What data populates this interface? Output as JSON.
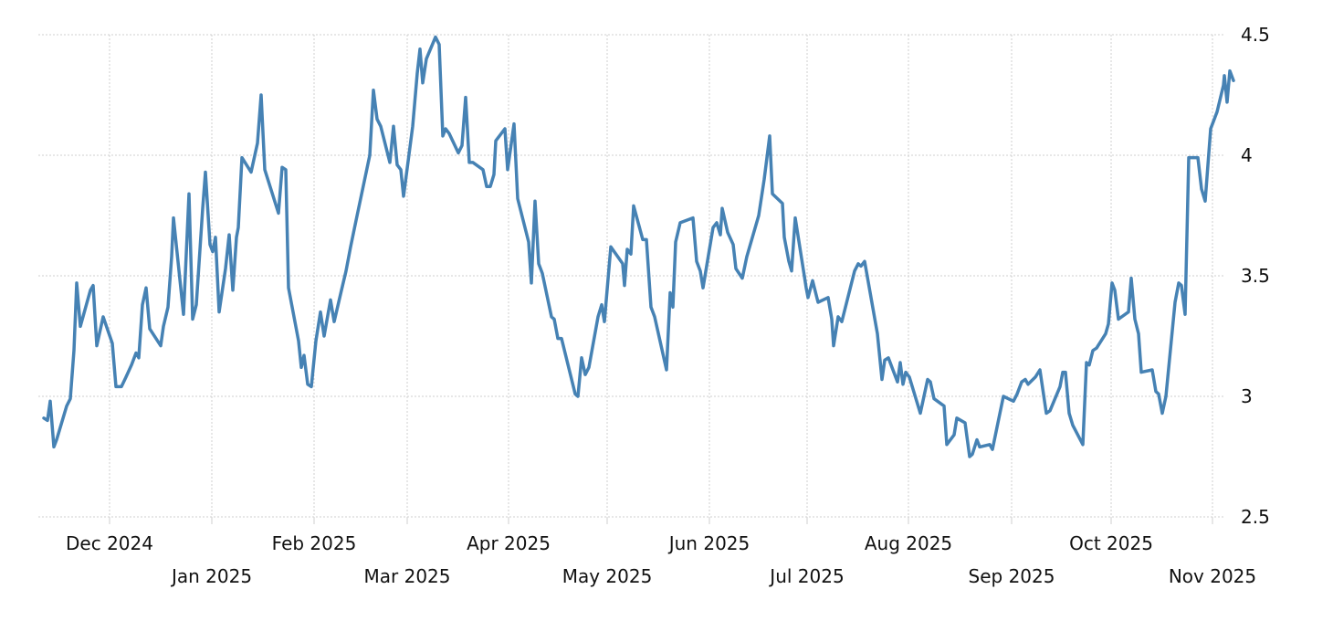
{
  "chart_data": {
    "type": "line",
    "title": "",
    "xlabel": "",
    "ylabel": "",
    "ylim": [
      2.5,
      4.5
    ],
    "y_ticks": [
      "4.5",
      "4",
      "3.5",
      "3",
      "2.5"
    ],
    "y_axis_position": "right",
    "grid": true,
    "legend": null,
    "line_color": "#4682b4",
    "x_tick_labels": [
      {
        "label": "Dec 2024",
        "row": 1
      },
      {
        "label": "Jan 2025",
        "row": 2
      },
      {
        "label": "Feb 2025",
        "row": 1
      },
      {
        "label": "Mar 2025",
        "row": 2
      },
      {
        "label": "Apr 2025",
        "row": 1
      },
      {
        "label": "May 2025",
        "row": 2
      },
      {
        "label": "Jun 2025",
        "row": 1
      },
      {
        "label": "Jul 2025",
        "row": 2
      },
      {
        "label": "Aug 2025",
        "row": 1
      },
      {
        "label": "Sep 2025",
        "row": 2
      },
      {
        "label": "Oct 2025",
        "row": 1
      },
      {
        "label": "Nov 2025",
        "row": 2
      }
    ],
    "series": [
      {
        "name": "value",
        "points": [
          [
            48,
            2.91
          ],
          [
            52,
            2.9
          ],
          [
            55,
            2.98
          ],
          [
            59,
            2.79
          ],
          [
            62,
            2.82
          ],
          [
            73,
            2.96
          ],
          [
            77,
            2.99
          ],
          [
            81,
            3.19
          ],
          [
            84,
            3.47
          ],
          [
            88,
            3.29
          ],
          [
            99,
            3.44
          ],
          [
            102,
            3.46
          ],
          [
            106,
            3.21
          ],
          [
            113,
            3.33
          ],
          [
            123,
            3.22
          ],
          [
            127,
            3.04
          ],
          [
            133,
            3.04
          ],
          [
            138,
            3.08
          ],
          [
            144,
            3.13
          ],
          [
            149,
            3.18
          ],
          [
            152,
            3.16
          ],
          [
            156,
            3.38
          ],
          [
            160,
            3.45
          ],
          [
            164,
            3.28
          ],
          [
            176,
            3.21
          ],
          [
            179,
            3.29
          ],
          [
            184,
            3.37
          ],
          [
            188,
            3.58
          ],
          [
            190,
            3.74
          ],
          [
            201,
            3.34
          ],
          [
            207,
            3.84
          ],
          [
            211,
            3.32
          ],
          [
            215,
            3.38
          ],
          [
            222,
            3.78
          ],
          [
            225,
            3.93
          ],
          [
            230,
            3.63
          ],
          [
            233,
            3.6
          ],
          [
            236,
            3.66
          ],
          [
            240,
            3.35
          ],
          [
            247,
            3.53
          ],
          [
            251,
            3.67
          ],
          [
            255,
            3.44
          ],
          [
            259,
            3.66
          ],
          [
            261,
            3.7
          ],
          [
            265,
            3.99
          ],
          [
            275,
            3.93
          ],
          [
            282,
            4.05
          ],
          [
            286,
            4.25
          ],
          [
            290,
            3.94
          ],
          [
            305,
            3.76
          ],
          [
            309,
            3.95
          ],
          [
            313,
            3.94
          ],
          [
            316,
            3.45
          ],
          [
            327,
            3.23
          ],
          [
            330,
            3.12
          ],
          [
            333,
            3.17
          ],
          [
            337,
            3.05
          ],
          [
            341,
            3.04
          ],
          [
            346,
            3.23
          ],
          [
            351,
            3.35
          ],
          [
            355,
            3.25
          ],
          [
            362,
            3.4
          ],
          [
            366,
            3.31
          ],
          [
            374,
            3.44
          ],
          [
            379,
            3.52
          ],
          [
            384,
            3.62
          ],
          [
            390,
            3.73
          ],
          [
            405,
            4.0
          ],
          [
            409,
            4.27
          ],
          [
            413,
            4.15
          ],
          [
            417,
            4.12
          ],
          [
            427,
            3.97
          ],
          [
            431,
            4.12
          ],
          [
            435,
            3.96
          ],
          [
            439,
            3.94
          ],
          [
            442,
            3.83
          ],
          [
            452,
            4.12
          ],
          [
            457,
            4.34
          ],
          [
            460,
            4.44
          ],
          [
            463,
            4.3
          ],
          [
            467,
            4.4
          ],
          [
            477,
            4.49
          ],
          [
            481,
            4.46
          ],
          [
            485,
            4.08
          ],
          [
            488,
            4.11
          ],
          [
            492,
            4.09
          ],
          [
            502,
            4.01
          ],
          [
            506,
            4.04
          ],
          [
            510,
            4.24
          ],
          [
            514,
            3.97
          ],
          [
            518,
            3.97
          ],
          [
            529,
            3.94
          ],
          [
            533,
            3.87
          ],
          [
            537,
            3.87
          ],
          [
            541,
            3.92
          ],
          [
            543,
            4.06
          ],
          [
            553,
            4.11
          ],
          [
            556,
            3.94
          ],
          [
            563,
            4.13
          ],
          [
            567,
            3.82
          ],
          [
            579,
            3.64
          ],
          [
            582,
            3.47
          ],
          [
            586,
            3.81
          ],
          [
            590,
            3.55
          ],
          [
            594,
            3.51
          ],
          [
            604,
            3.33
          ],
          [
            607,
            3.32
          ],
          [
            611,
            3.24
          ],
          [
            615,
            3.24
          ],
          [
            630,
            3.01
          ],
          [
            633,
            3.0
          ],
          [
            637,
            3.16
          ],
          [
            641,
            3.09
          ],
          [
            645,
            3.12
          ],
          [
            655,
            3.33
          ],
          [
            659,
            3.38
          ],
          [
            662,
            3.31
          ],
          [
            669,
            3.62
          ],
          [
            682,
            3.55
          ],
          [
            684,
            3.46
          ],
          [
            687,
            3.61
          ],
          [
            691,
            3.59
          ],
          [
            694,
            3.79
          ],
          [
            704,
            3.65
          ],
          [
            708,
            3.65
          ],
          [
            713,
            3.37
          ],
          [
            717,
            3.33
          ],
          [
            730,
            3.11
          ],
          [
            734,
            3.43
          ],
          [
            737,
            3.37
          ],
          [
            740,
            3.64
          ],
          [
            745,
            3.72
          ],
          [
            759,
            3.74
          ],
          [
            763,
            3.56
          ],
          [
            767,
            3.52
          ],
          [
            770,
            3.45
          ],
          [
            781,
            3.7
          ],
          [
            785,
            3.72
          ],
          [
            789,
            3.67
          ],
          [
            791,
            3.78
          ],
          [
            797,
            3.68
          ],
          [
            803,
            3.63
          ],
          [
            806,
            3.53
          ],
          [
            813,
            3.49
          ],
          [
            818,
            3.58
          ],
          [
            831,
            3.75
          ],
          [
            837,
            3.9
          ],
          [
            843,
            4.08
          ],
          [
            846,
            3.84
          ],
          [
            857,
            3.8
          ],
          [
            859,
            3.66
          ],
          [
            864,
            3.56
          ],
          [
            867,
            3.52
          ],
          [
            871,
            3.74
          ],
          [
            883,
            3.45
          ],
          [
            885,
            3.41
          ],
          [
            890,
            3.48
          ],
          [
            896,
            3.39
          ],
          [
            907,
            3.41
          ],
          [
            911,
            3.32
          ],
          [
            913,
            3.21
          ],
          [
            918,
            3.33
          ],
          [
            922,
            3.31
          ],
          [
            936,
            3.52
          ],
          [
            940,
            3.55
          ],
          [
            943,
            3.54
          ],
          [
            947,
            3.56
          ],
          [
            961,
            3.26
          ],
          [
            966,
            3.07
          ],
          [
            969,
            3.15
          ],
          [
            973,
            3.16
          ],
          [
            983,
            3.06
          ],
          [
            986,
            3.14
          ],
          [
            989,
            3.05
          ],
          [
            992,
            3.1
          ],
          [
            996,
            3.08
          ],
          [
            1008,
            2.93
          ],
          [
            1016,
            3.07
          ],
          [
            1019,
            3.06
          ],
          [
            1023,
            2.99
          ],
          [
            1034,
            2.96
          ],
          [
            1037,
            2.8
          ],
          [
            1045,
            2.84
          ],
          [
            1048,
            2.91
          ],
          [
            1057,
            2.89
          ],
          [
            1062,
            2.75
          ],
          [
            1065,
            2.76
          ],
          [
            1070,
            2.82
          ],
          [
            1073,
            2.79
          ],
          [
            1084,
            2.8
          ],
          [
            1087,
            2.78
          ],
          [
            1093,
            2.89
          ],
          [
            1099,
            3.0
          ],
          [
            1110,
            2.98
          ],
          [
            1114,
            3.01
          ],
          [
            1119,
            3.06
          ],
          [
            1123,
            3.07
          ],
          [
            1126,
            3.05
          ],
          [
            1134,
            3.08
          ],
          [
            1139,
            3.11
          ],
          [
            1146,
            2.93
          ],
          [
            1150,
            2.94
          ],
          [
            1161,
            3.04
          ],
          [
            1164,
            3.1
          ],
          [
            1167,
            3.1
          ],
          [
            1171,
            2.93
          ],
          [
            1175,
            2.88
          ],
          [
            1186,
            2.8
          ],
          [
            1190,
            3.14
          ],
          [
            1193,
            3.13
          ],
          [
            1197,
            3.19
          ],
          [
            1201,
            3.2
          ],
          [
            1211,
            3.26
          ],
          [
            1214,
            3.3
          ],
          [
            1218,
            3.47
          ],
          [
            1221,
            3.44
          ],
          [
            1225,
            3.32
          ],
          [
            1236,
            3.35
          ],
          [
            1239,
            3.49
          ],
          [
            1243,
            3.32
          ],
          [
            1247,
            3.26
          ],
          [
            1250,
            3.1
          ],
          [
            1262,
            3.11
          ],
          [
            1266,
            3.02
          ],
          [
            1269,
            3.01
          ],
          [
            1273,
            2.93
          ],
          [
            1277,
            3.0
          ],
          [
            1287,
            3.39
          ],
          [
            1291,
            3.47
          ],
          [
            1294,
            3.46
          ],
          [
            1298,
            3.34
          ],
          [
            1302,
            3.99
          ],
          [
            1312,
            3.99
          ],
          [
            1316,
            3.86
          ],
          [
            1320,
            3.81
          ],
          [
            1326,
            4.11
          ],
          [
            1333,
            4.18
          ],
          [
            1340,
            4.29
          ],
          [
            1341,
            4.33
          ],
          [
            1344,
            4.22
          ],
          [
            1347,
            4.35
          ],
          [
            1351,
            4.31
          ]
        ]
      }
    ]
  }
}
